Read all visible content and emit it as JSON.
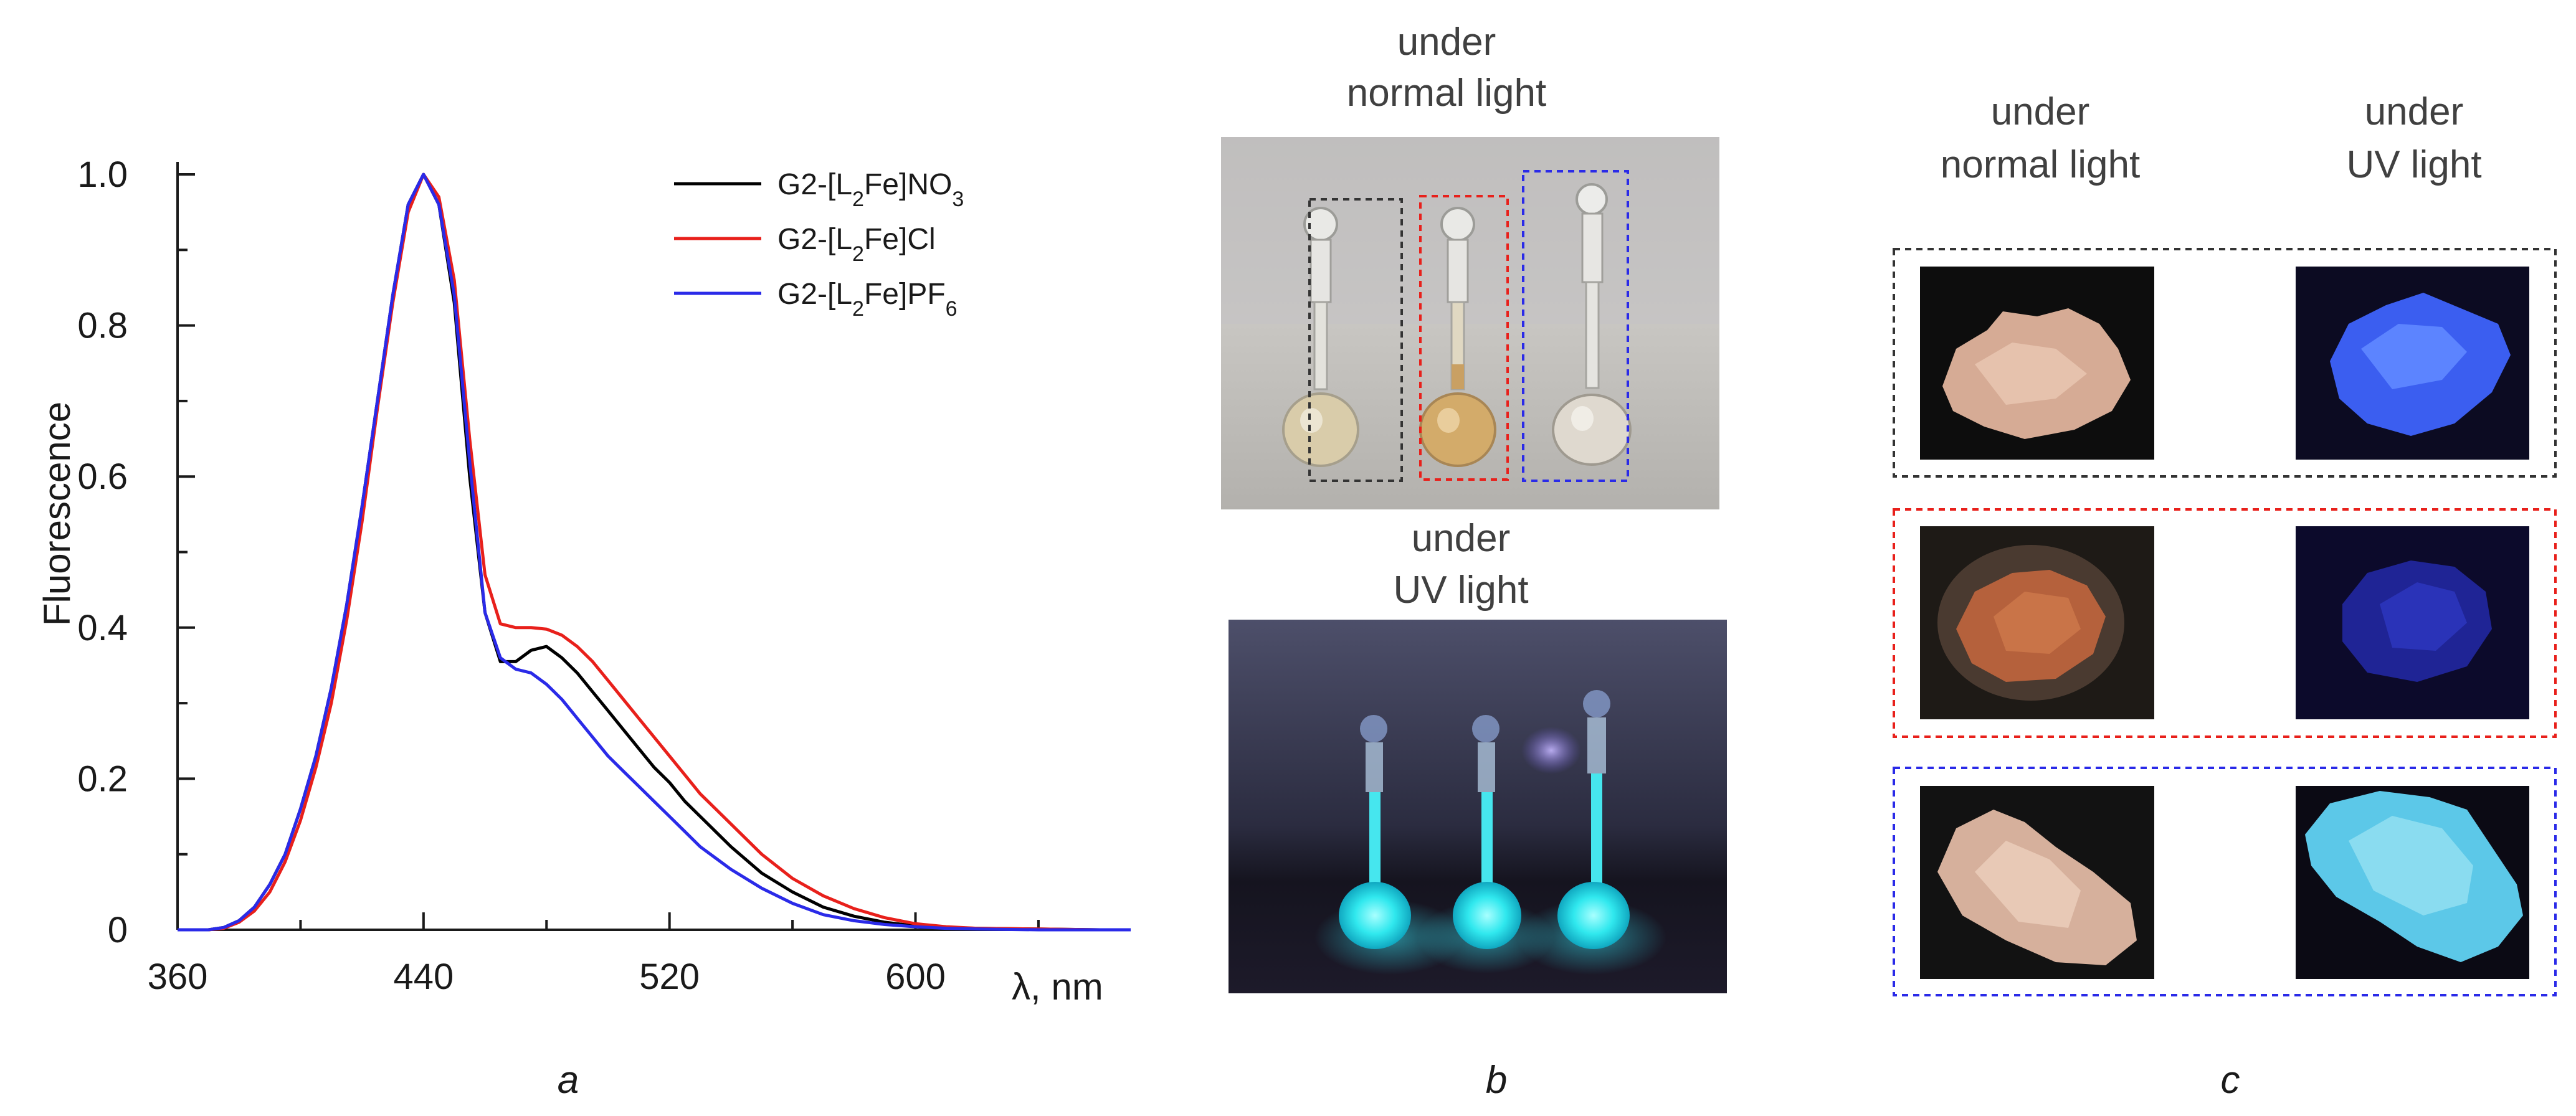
{
  "chart_data": {
    "type": "line",
    "xlabel": "λ, nm",
    "ylabel": "Fluorescence",
    "xlim": [
      360,
      670
    ],
    "ylim": [
      0,
      1.0
    ],
    "x_ticks": [
      360,
      440,
      520,
      600
    ],
    "y_ticks": [
      0,
      0.2,
      0.4,
      0.6,
      0.8,
      1.0
    ],
    "y_tick_labels": [
      "0",
      "0.2",
      "0.4",
      "0.6",
      "0.8",
      "1.0"
    ],
    "legend_position": "top-right",
    "x": [
      360,
      370,
      375,
      380,
      385,
      390,
      395,
      400,
      405,
      410,
      415,
      420,
      425,
      430,
      435,
      440,
      445,
      450,
      455,
      460,
      465,
      470,
      475,
      480,
      485,
      490,
      495,
      500,
      505,
      510,
      515,
      520,
      525,
      530,
      535,
      540,
      550,
      560,
      570,
      580,
      590,
      600,
      610,
      620,
      640,
      660,
      670
    ],
    "series": [
      {
        "name": "G2-[L2Fe]NO3",
        "label_base": "G2-[L",
        "label_sub1": "2",
        "label_mid": "Fe]NO",
        "label_sub2": "3",
        "color": "#000000",
        "values": [
          0.0,
          0.0,
          0.003,
          0.012,
          0.03,
          0.06,
          0.1,
          0.16,
          0.23,
          0.32,
          0.43,
          0.56,
          0.7,
          0.84,
          0.96,
          1.0,
          0.96,
          0.83,
          0.6,
          0.42,
          0.355,
          0.355,
          0.37,
          0.375,
          0.36,
          0.34,
          0.315,
          0.29,
          0.265,
          0.24,
          0.215,
          0.195,
          0.17,
          0.15,
          0.13,
          0.11,
          0.075,
          0.05,
          0.03,
          0.018,
          0.01,
          0.005,
          0.003,
          0.002,
          0.001,
          0.0,
          0.0
        ]
      },
      {
        "name": "G2-[L2Fe]Cl",
        "label_base": "G2-[L",
        "label_sub1": "2",
        "label_mid": "Fe]Cl",
        "label_sub2": "",
        "color": "#e8201b",
        "values": [
          0.0,
          0.0,
          0.002,
          0.01,
          0.025,
          0.05,
          0.09,
          0.145,
          0.215,
          0.3,
          0.41,
          0.54,
          0.69,
          0.83,
          0.95,
          1.0,
          0.97,
          0.86,
          0.65,
          0.47,
          0.405,
          0.4,
          0.4,
          0.398,
          0.39,
          0.375,
          0.355,
          0.33,
          0.305,
          0.28,
          0.255,
          0.23,
          0.205,
          0.18,
          0.16,
          0.14,
          0.1,
          0.068,
          0.045,
          0.028,
          0.016,
          0.008,
          0.004,
          0.002,
          0.001,
          0.0,
          0.0
        ]
      },
      {
        "name": "G2-[L2Fe]PF6",
        "label_base": "G2-[L",
        "label_sub1": "2",
        "label_mid": "Fe]PF",
        "label_sub2": "6",
        "color": "#2a2ae8",
        "values": [
          0.0,
          0.0,
          0.003,
          0.012,
          0.03,
          0.06,
          0.1,
          0.16,
          0.23,
          0.32,
          0.43,
          0.56,
          0.7,
          0.84,
          0.96,
          1.0,
          0.96,
          0.84,
          0.62,
          0.42,
          0.36,
          0.345,
          0.34,
          0.325,
          0.305,
          0.28,
          0.255,
          0.23,
          0.21,
          0.19,
          0.17,
          0.15,
          0.13,
          0.11,
          0.095,
          0.08,
          0.055,
          0.035,
          0.02,
          0.012,
          0.007,
          0.004,
          0.002,
          0.001,
          0.0,
          0.0,
          0.0
        ]
      }
    ]
  },
  "panels": {
    "a_label": "a",
    "b_label": "b",
    "c_label": "c"
  },
  "panel_b": {
    "normal_caption_line1": "under",
    "normal_caption_line2": "normal light",
    "uv_caption_line1": "under",
    "uv_caption_line2": "UV light"
  },
  "panel_c": {
    "col1_line1": "under",
    "col1_line2": "normal light",
    "col2_line1": "under",
    "col2_line2": "UV light"
  },
  "colors": {
    "frame_black": "#333333",
    "frame_red": "#e8201b",
    "frame_blue": "#2a2ae8",
    "uv_glow": "#38f0f0",
    "powder_normal": "#d9ad96",
    "powder_uv_blue": "#3b5ef0",
    "powder_uv_light": "#5cc8e8"
  }
}
